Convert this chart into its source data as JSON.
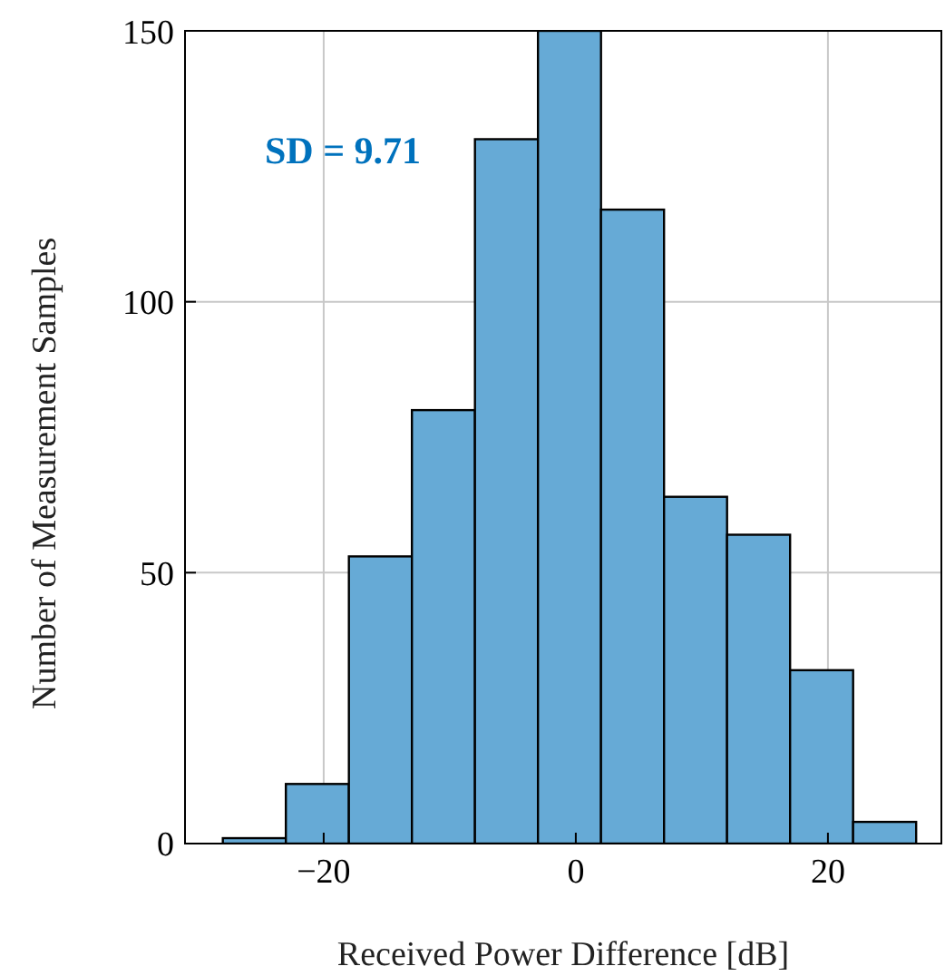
{
  "chart_data": {
    "type": "histogram",
    "xlabel": "Received Power Difference [dB]",
    "ylabel": "Number of Measurement Samples",
    "bins": [
      -28,
      -23,
      -18,
      -13,
      -8,
      -3,
      2,
      7,
      12,
      17,
      22,
      27
    ],
    "values": [
      1,
      11,
      53,
      80,
      130,
      150,
      117,
      64,
      57,
      32,
      4
    ],
    "color": "#66aad6",
    "xlim": [
      -31,
      29
    ],
    "xticks": [
      {
        "value": -20,
        "label": "−20"
      },
      0,
      20
    ],
    "ylim": [
      0,
      150
    ],
    "yticks": [
      0,
      50,
      100,
      150
    ],
    "grid": true,
    "annotations": [
      "SD = 9.71"
    ]
  }
}
